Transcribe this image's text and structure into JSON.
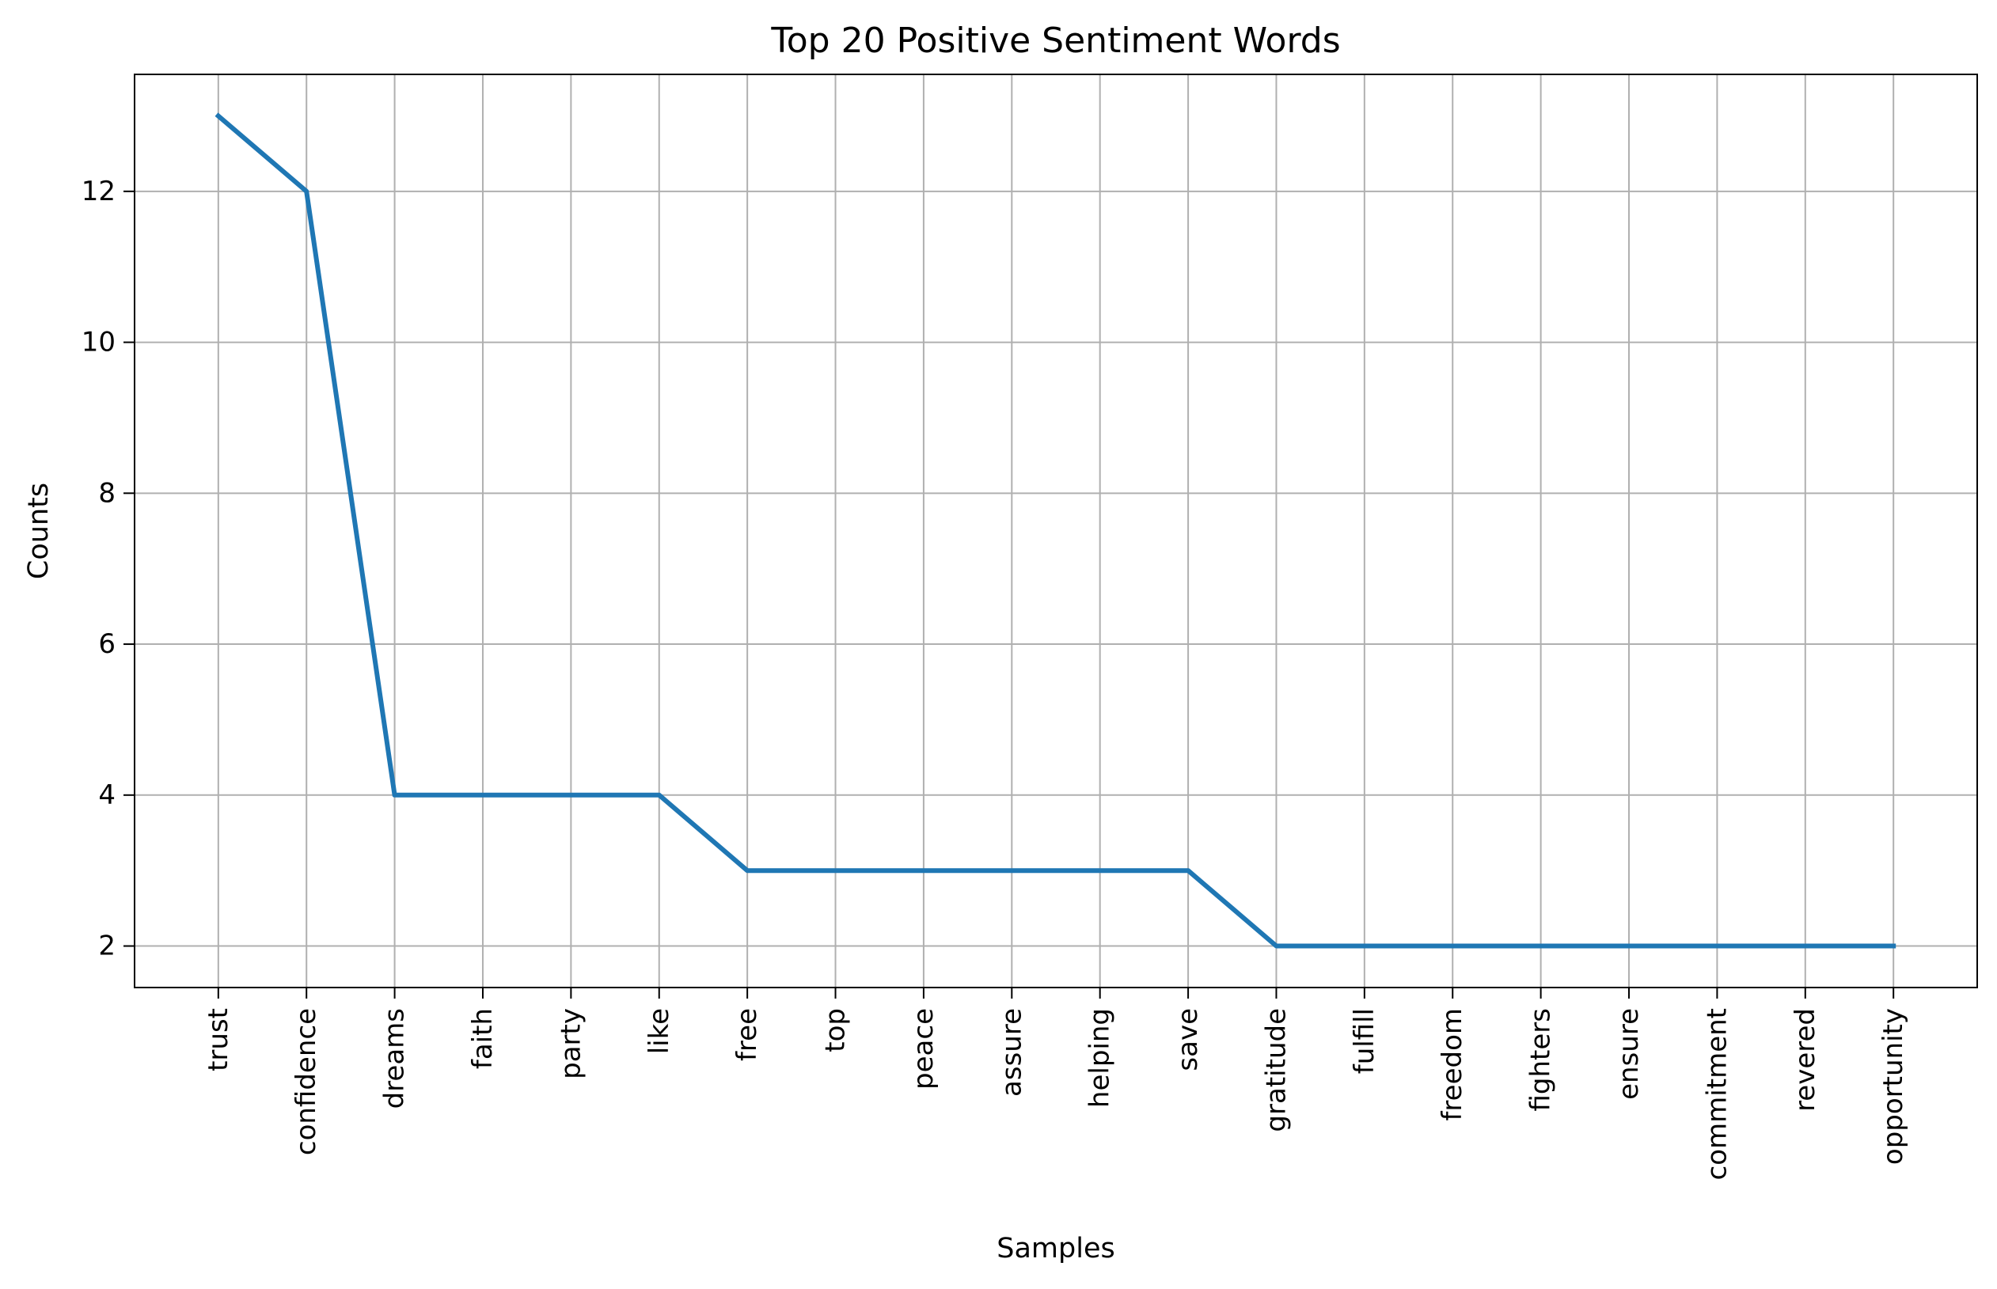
{
  "chart_data": {
    "type": "line",
    "title": "Top 20 Positive Sentiment Words",
    "xlabel": "Samples",
    "ylabel": "Counts",
    "categories": [
      "trust",
      "confidence",
      "dreams",
      "faith",
      "party",
      "like",
      "free",
      "top",
      "peace",
      "assure",
      "helping",
      "save",
      "gratitude",
      "fulfill",
      "freedom",
      "fighters",
      "ensure",
      "commitment",
      "revered",
      "opportunity"
    ],
    "series": [
      {
        "values": [
          13,
          12,
          4,
          4,
          4,
          4,
          3,
          3,
          3,
          3,
          3,
          3,
          2,
          2,
          2,
          2,
          2,
          2,
          2,
          2
        ]
      }
    ],
    "ylim": [
      1.45,
      13.55
    ],
    "yticks": [
      2,
      4,
      6,
      8,
      10,
      12
    ],
    "grid": true,
    "line_color": "#1f77b4",
    "grid_color": "#b0b0b0"
  }
}
